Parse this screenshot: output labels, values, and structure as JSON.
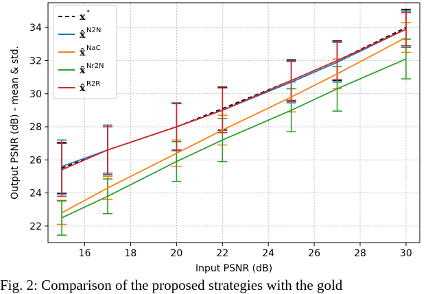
{
  "chart_data": {
    "type": "line",
    "xlabel": "Input PSNR (dB)",
    "ylabel": "Output PSNR (dB) - mean & std.",
    "xlim": [
      14.4,
      30.6
    ],
    "ylim": [
      21.0,
      35.5
    ],
    "xticks": [
      16,
      18,
      20,
      22,
      24,
      26,
      28,
      30
    ],
    "yticks": [
      22,
      24,
      26,
      28,
      30,
      32,
      34
    ],
    "grid": true,
    "legend_position": "top-left",
    "x": [
      15,
      17,
      20,
      22,
      25,
      27,
      30
    ],
    "series": [
      {
        "name": "x*",
        "label_base": "x",
        "label_sup": "*",
        "color": "#000000",
        "dash": true,
        "values": [
          25.5,
          26.6,
          28.0,
          29.1,
          30.8,
          32.0,
          34.0
        ],
        "std": [
          1.55,
          1.5,
          1.4,
          1.3,
          1.25,
          1.2,
          1.1
        ]
      },
      {
        "name": "x̂N2N",
        "label_base": "x̂",
        "label_sup": "N2N",
        "color": "#1f77b4",
        "dash": false,
        "values": [
          25.6,
          26.6,
          28.0,
          29.0,
          30.7,
          31.9,
          33.9
        ],
        "std": [
          1.6,
          1.5,
          1.45,
          1.35,
          1.25,
          1.2,
          1.1
        ]
      },
      {
        "name": "x̂NaC",
        "label_base": "x̂",
        "label_sup": "NaC",
        "color": "#ff7f0e",
        "dash": false,
        "values": [
          22.8,
          24.3,
          26.4,
          27.8,
          29.8,
          31.2,
          33.4
        ],
        "std": [
          0.7,
          0.7,
          0.8,
          0.9,
          0.9,
          0.9,
          0.9
        ]
      },
      {
        "name": "x̂Nr2N",
        "label_base": "x̂",
        "label_sup": "Nr2N",
        "color": "#2ca02c",
        "dash": false,
        "values": [
          22.5,
          23.8,
          25.9,
          27.2,
          29.0,
          30.3,
          32.1
        ],
        "std": [
          1.05,
          1.05,
          1.2,
          1.3,
          1.3,
          1.35,
          1.2
        ]
      },
      {
        "name": "x̂R2R",
        "label_base": "x̂",
        "label_sup": "R2R",
        "color": "#d62728",
        "dash": false,
        "values": [
          25.4,
          26.6,
          28.0,
          29.0,
          30.8,
          32.0,
          33.9
        ],
        "std": [
          1.6,
          1.4,
          1.4,
          1.35,
          1.2,
          1.15,
          1.0
        ]
      }
    ]
  },
  "caption": "Fig. 2: Comparison of the proposed strategies with the gold"
}
